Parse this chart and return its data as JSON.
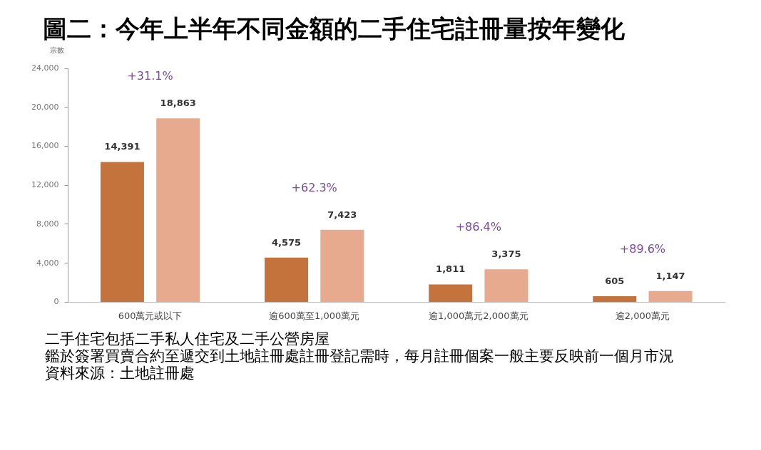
{
  "chart_data": {
    "type": "bar",
    "title": "圖二：今年上半年不同金額的二手住宅註冊量按年變化",
    "ylabel": "宗數",
    "categories": [
      "600萬元或以下",
      "逾600萬至1,000萬元",
      "逾1,000萬元2,000萬元",
      "逾2,000萬元"
    ],
    "series": [
      {
        "color": "#c4733d",
        "values": [
          14391,
          4575,
          1811,
          605
        ],
        "value_labels": [
          "14,391",
          "4,575",
          "1,811",
          "605"
        ]
      },
      {
        "color": "#e8aa8e",
        "values": [
          18863,
          7423,
          3375,
          1147
        ],
        "value_labels": [
          "18,863",
          "7,423",
          "3,375",
          "1,147"
        ]
      }
    ],
    "ylim": [
      0,
      24000
    ],
    "yticks": [
      {
        "value": 0,
        "label": "0"
      },
      {
        "value": 4000,
        "label": "4,000"
      },
      {
        "value": 8000,
        "label": "8,000"
      },
      {
        "value": 12000,
        "label": "12,000"
      },
      {
        "value": 16000,
        "label": "16,000"
      },
      {
        "value": 20000,
        "label": "20,000"
      },
      {
        "value": 24000,
        "label": "24,000"
      }
    ],
    "grid": false,
    "legend": false,
    "annotations": [
      "+31.1%",
      "+62.3%",
      "+86.4%",
      "+89.6%",
      "二手住宅包括二手私人住宅及二手公營房屋",
      "鑑於簽署買賣合約至遞交到土地註冊處註冊登記需時，每月註冊個案一般主要反映前一個月市況",
      "資料來源：土地註冊處"
    ]
  }
}
